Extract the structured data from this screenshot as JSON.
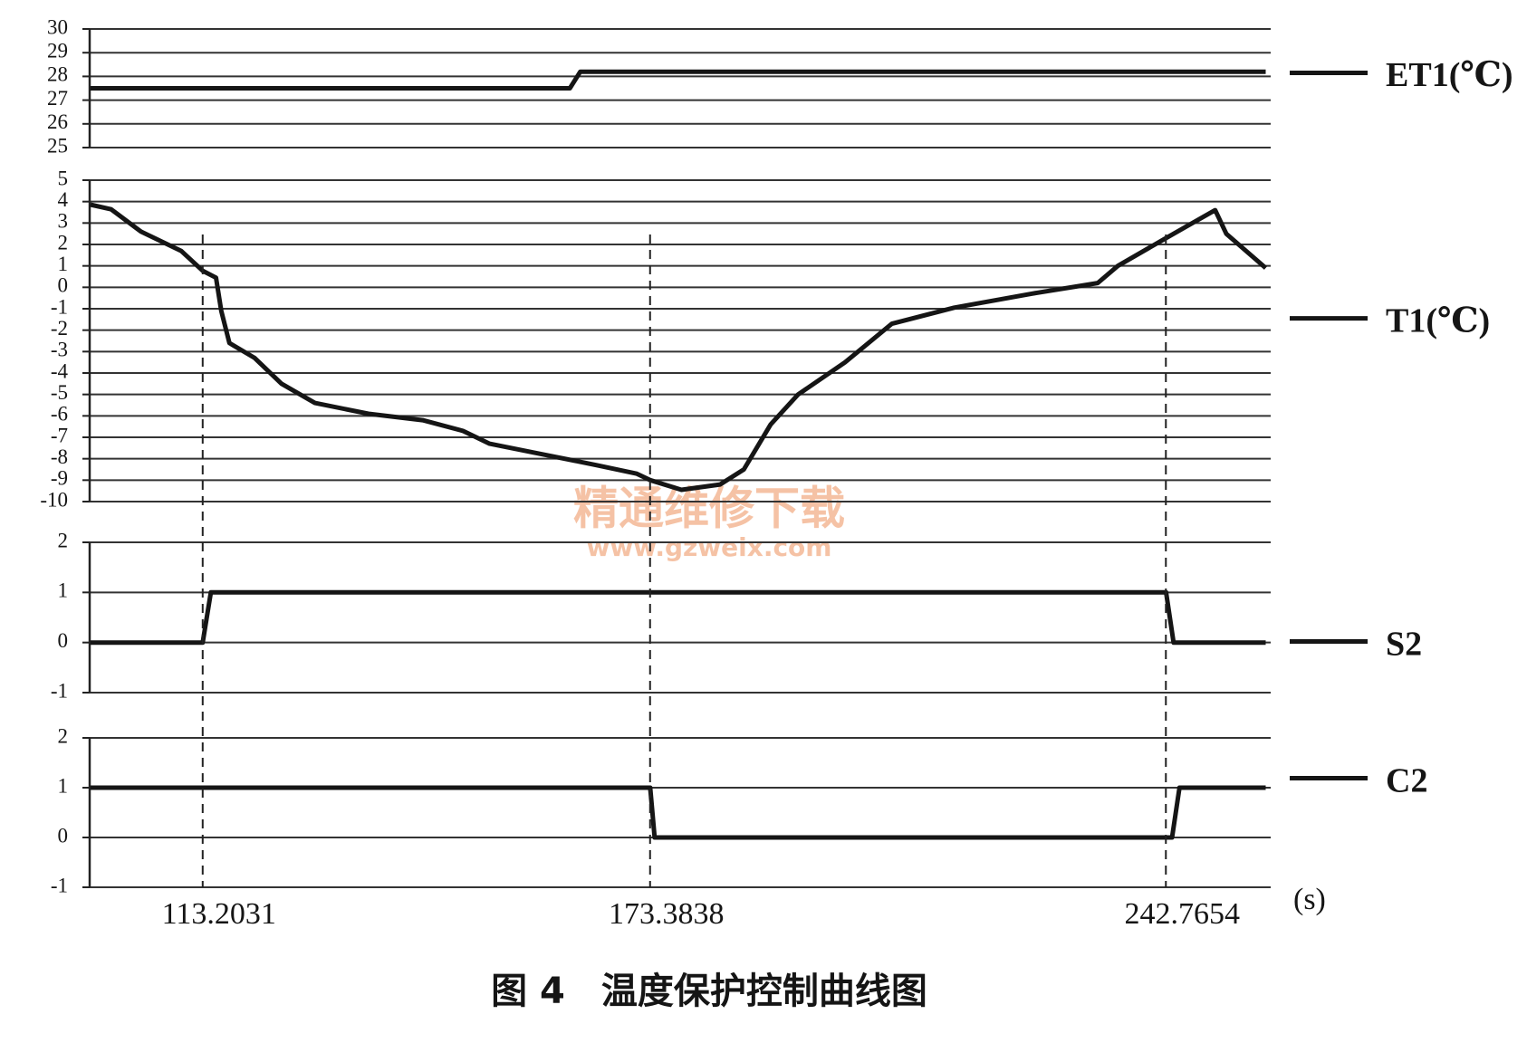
{
  "chart_data": [
    {
      "type": "line",
      "xlim": [
        98,
        256.5
      ],
      "ylim": [
        25,
        30
      ],
      "yticks": [
        25,
        26,
        27,
        28,
        29,
        30
      ],
      "grid": true,
      "x": [
        98.1,
        162.6,
        164.0,
        256.2
      ],
      "series": [
        {
          "name": "ET1(℃)",
          "color": "#151515",
          "values": [
            27.5,
            27.5,
            28.2,
            28.2
          ]
        }
      ]
    },
    {
      "type": "line",
      "xlim": [
        98,
        256.5
      ],
      "ylim": [
        -10,
        5
      ],
      "yticks": [
        -10,
        -9,
        -8,
        -7,
        -6,
        -5,
        -4,
        -3,
        -2,
        -1,
        0,
        1,
        2,
        3,
        4,
        5
      ],
      "grid": true,
      "x": [
        98.1,
        100.9,
        104.9,
        110.3,
        113.2,
        115.0,
        115.7,
        116.8,
        120.2,
        123.8,
        128.3,
        135.5,
        142.8,
        148.2,
        151.8,
        159.0,
        166.2,
        171.6,
        173.4,
        177.6,
        182.8,
        186.0,
        189.6,
        193.3,
        199.6,
        205.9,
        214.3,
        224.7,
        233.6,
        236.3,
        242.8,
        249.4,
        250.9,
        256.2
      ],
      "series": [
        {
          "name": "T1(℃)",
          "color": "#151515",
          "values": [
            3.86,
            3.64,
            2.6,
            1.7,
            0.77,
            0.45,
            -1.1,
            -2.6,
            -3.3,
            -4.5,
            -5.4,
            -5.9,
            -6.2,
            -6.7,
            -7.3,
            -7.8,
            -8.3,
            -8.7,
            -9.0,
            -9.45,
            -9.2,
            -8.5,
            -6.4,
            -5.0,
            -3.5,
            -1.7,
            -0.95,
            -0.3,
            0.2,
            1.0,
            2.3,
            3.6,
            2.5,
            0.9
          ]
        }
      ]
    },
    {
      "type": "line",
      "xlim": [
        98,
        256.5
      ],
      "ylim": [
        -1,
        2
      ],
      "yticks": [
        -1,
        0,
        1,
        2
      ],
      "grid": true,
      "x": [
        98.1,
        113.2,
        114.3,
        242.8,
        243.8,
        256.2
      ],
      "series": [
        {
          "name": "S2",
          "color": "#151515",
          "values": [
            0,
            0,
            1,
            1,
            0,
            0
          ]
        }
      ]
    },
    {
      "type": "line",
      "xlim": [
        98,
        256.5
      ],
      "ylim": [
        -1,
        2
      ],
      "yticks": [
        -1,
        0,
        1,
        2
      ],
      "grid": true,
      "x": [
        98.1,
        173.4,
        174.0,
        243.6,
        244.6,
        256.2
      ],
      "series": [
        {
          "name": "C2",
          "color": "#151515",
          "values": [
            1,
            1,
            0,
            0,
            1,
            1
          ]
        }
      ],
      "xticks": [
        113.2031,
        173.3838,
        242.7654
      ],
      "xlabel": "(s)"
    }
  ],
  "watermark": {
    "title": "精通维修下载",
    "url": "www.gzweix.com"
  },
  "caption": "图 4　温度保护控制曲线图"
}
